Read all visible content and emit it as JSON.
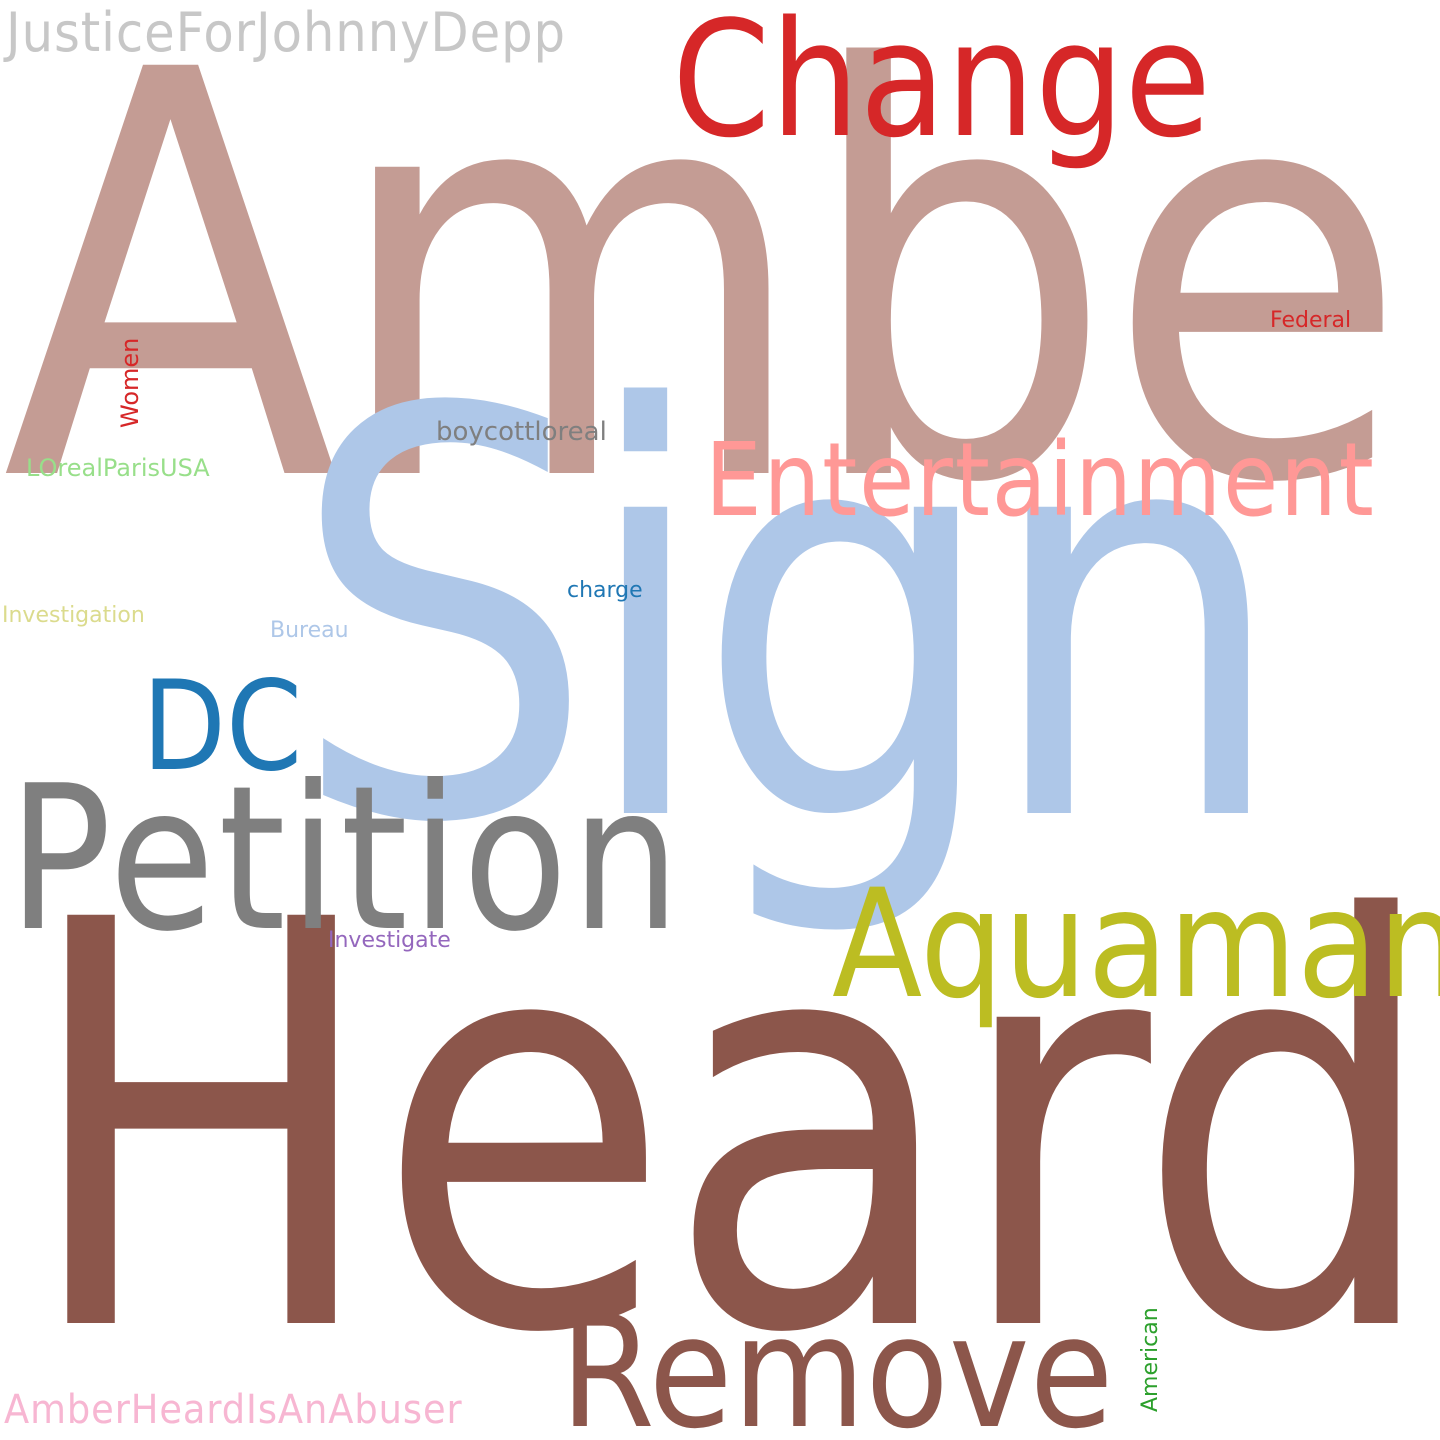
{
  "cloud": {
    "words": {
      "amber": {
        "text": "Amber",
        "color": "#c49c94"
      },
      "heard": {
        "text": "Heard",
        "color": "#8c564b"
      },
      "sign": {
        "text": "Sign",
        "color": "#aec7e8"
      },
      "petition": {
        "text": "Petition",
        "color": "#7f7f7f"
      },
      "change": {
        "text": "Change",
        "color": "#d62728"
      },
      "entertainment": {
        "text": "Entertainment",
        "color": "#ff9896"
      },
      "aquaman": {
        "text": "Aquaman",
        "color": "#bcbd22"
      },
      "dc": {
        "text": "DC",
        "color": "#1f77b4"
      },
      "remove": {
        "text": "Remove",
        "color": "#8c564b"
      },
      "justice": {
        "text": "JusticeForJohnnyDepp",
        "color": "#c7c7c7"
      },
      "abuser": {
        "text": "AmberHeardIsAnAbuser",
        "color": "#f7b6d2"
      },
      "women": {
        "text": "Women",
        "color": "#d62728"
      },
      "american": {
        "text": "American",
        "color": "#2ca02c"
      },
      "federal": {
        "text": "Federal",
        "color": "#d62728"
      },
      "boycott": {
        "text": "boycottloreal",
        "color": "#7f7f7f"
      },
      "loreal": {
        "text": "LOrealParisUSA",
        "color": "#98df8a"
      },
      "charge": {
        "text": "charge",
        "color": "#1f77b4"
      },
      "investigation": {
        "text": "Investigation",
        "color": "#dbdb8d"
      },
      "bureau": {
        "text": "Bureau",
        "color": "#aec7e8"
      },
      "investigate": {
        "text": "Investigate",
        "color": "#9467bd"
      }
    }
  }
}
